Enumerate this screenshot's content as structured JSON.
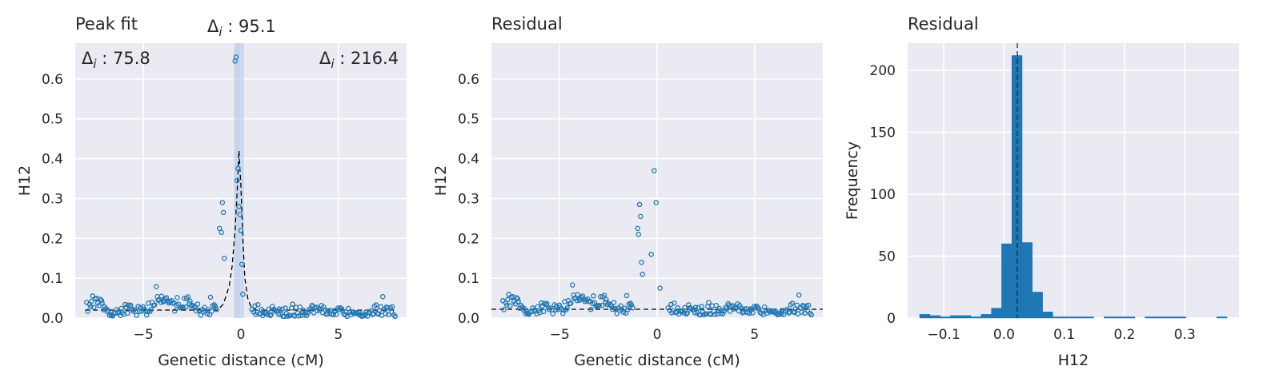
{
  "colors": {
    "background": "#eaeaf2",
    "grid": "#ffffff",
    "points": "#1f77b4",
    "bars": "#1f77b4",
    "shade": "#aec7e8",
    "dashed": "#000000",
    "text": "#262626"
  },
  "chart_data": [
    {
      "type": "scatter",
      "title": "Peak fit",
      "xlabel": "Genetic distance (cM)",
      "ylabel": "H12",
      "xlim": [
        -8.5,
        8.5
      ],
      "ylim": [
        0,
        0.69
      ],
      "xticks": [
        -5,
        0,
        5
      ],
      "yticks": [
        0.0,
        0.1,
        0.2,
        0.3,
        0.4,
        0.5,
        0.6
      ],
      "xtick_labels": [
        "−5",
        "0",
        "5"
      ],
      "ytick_labels": [
        "0.0",
        "0.1",
        "0.2",
        "0.3",
        "0.4",
        "0.5",
        "0.6"
      ],
      "grid": true,
      "annotations": [
        {
          "label": "Δ",
          "sub": "i",
          "value": " : 75.8",
          "position": "top-left"
        },
        {
          "label": "Δ",
          "sub": "i",
          "value": " : 95.1",
          "position": "top-center"
        },
        {
          "label": "Δ",
          "sub": "i",
          "value": " : 216.4",
          "position": "top-right"
        }
      ],
      "shaded_region": [
        -0.35,
        0.15
      ],
      "fit_curve": {
        "peak_x": -0.1,
        "peak_y": 0.42,
        "baseline": 0.02,
        "x": [
          -1.2,
          -0.9,
          -0.6,
          -0.45,
          -0.3,
          -0.2,
          -0.1,
          0.0,
          0.1,
          0.2,
          0.35,
          0.5,
          0.8
        ],
        "y": [
          0.02,
          0.035,
          0.08,
          0.13,
          0.22,
          0.31,
          0.42,
          0.33,
          0.2,
          0.1,
          0.05,
          0.03,
          0.02
        ]
      },
      "peak_points": {
        "x": [
          -1.1,
          -1.0,
          -0.95,
          -0.9,
          -0.85,
          -0.3,
          -0.25,
          -0.2,
          -0.15,
          -0.1,
          -0.05,
          0.0,
          0.05,
          0.1
        ],
        "y": [
          0.225,
          0.215,
          0.29,
          0.265,
          0.15,
          0.645,
          0.655,
          0.345,
          0.375,
          0.28,
          0.26,
          0.22,
          0.135,
          0.06
        ]
      }
    },
    {
      "type": "scatter",
      "title": "Residual",
      "xlabel": "Genetic distance (cM)",
      "ylabel": "H12",
      "xlim": [
        -8.5,
        8.5
      ],
      "ylim": [
        0,
        0.69
      ],
      "xticks": [
        -5,
        0,
        5
      ],
      "yticks": [
        0.0,
        0.1,
        0.2,
        0.3,
        0.4,
        0.5,
        0.6
      ],
      "xtick_labels": [
        "−5",
        "0",
        "5"
      ],
      "ytick_labels": [
        "0.0",
        "0.1",
        "0.2",
        "0.3",
        "0.4",
        "0.5",
        "0.6"
      ],
      "grid": true,
      "hline": 0.022,
      "peak_points": {
        "x": [
          -1.0,
          -0.95,
          -0.9,
          -0.85,
          -0.8,
          -0.75,
          -0.3,
          -0.15,
          -0.05,
          0.15
        ],
        "y": [
          0.225,
          0.21,
          0.285,
          0.255,
          0.14,
          0.11,
          0.16,
          0.37,
          0.29,
          0.075
        ]
      }
    },
    {
      "type": "bar",
      "title": "Residual",
      "xlabel": "H12",
      "ylabel": "Frequency",
      "xlim": [
        -0.16,
        0.39
      ],
      "ylim": [
        0,
        222
      ],
      "xticks": [
        -0.1,
        0.0,
        0.1,
        0.2,
        0.3
      ],
      "yticks": [
        0,
        50,
        100,
        150,
        200
      ],
      "xtick_labels": [
        "−0.1",
        "0.0",
        "0.1",
        "0.2",
        "0.3"
      ],
      "ytick_labels": [
        "0",
        "50",
        "100",
        "150",
        "200"
      ],
      "grid": true,
      "vline": 0.022,
      "bin_edges": [
        -0.14,
        -0.123,
        -0.106,
        -0.089,
        -0.072,
        -0.055,
        -0.038,
        -0.021,
        -0.004,
        0.013,
        0.03,
        0.047,
        0.064,
        0.081,
        0.098,
        0.115,
        0.132,
        0.149,
        0.166,
        0.183,
        0.2,
        0.217,
        0.234,
        0.251,
        0.268,
        0.285,
        0.302,
        0.319,
        0.336,
        0.353,
        0.37
      ],
      "values": [
        3,
        2,
        1,
        2,
        2,
        1,
        3,
        8,
        60,
        212,
        61,
        21,
        5,
        1,
        1,
        1,
        1,
        0,
        1,
        1,
        1,
        0,
        1,
        1,
        1,
        1,
        0,
        0,
        0,
        1
      ]
    }
  ]
}
